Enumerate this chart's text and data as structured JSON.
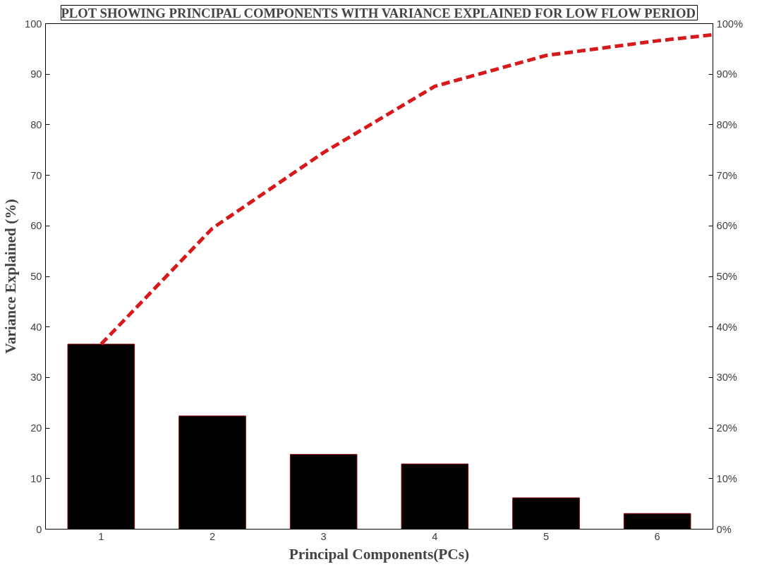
{
  "chart_data": {
    "type": "bar",
    "title": "PLOT SHOWING PRINCIPAL COMPONENTS WITH VARIANCE EXPLAINED FOR LOW FLOW PERIOD",
    "xlabel": "Principal Components(PCs)",
    "ylabel": "Variance Explained (%)",
    "x": [
      1,
      2,
      3,
      4,
      5,
      6
    ],
    "series": [
      {
        "color": "#000000",
        "values": [
          36.6,
          22.4,
          14.8,
          12.9,
          6.2,
          3.1
        ]
      },
      {
        "type": "line",
        "axis": "y2",
        "color": "#d7191c",
        "x": [
          1,
          2,
          3,
          4,
          5,
          6,
          6.5
        ],
        "values": [
          36.6,
          59.5,
          74.5,
          87.6,
          93.7,
          96.6,
          97.8
        ]
      }
    ],
    "xlim": [
      0.5,
      6.5
    ],
    "xticks": [
      1,
      2,
      3,
      4,
      5,
      6
    ],
    "ylim": [
      0,
      100
    ],
    "yticks": [
      0,
      10,
      20,
      30,
      40,
      50,
      60,
      70,
      80,
      90,
      100
    ],
    "y2lim": [
      0,
      100
    ],
    "y2ticks": [
      {
        "value": 0,
        "label": "0%"
      },
      {
        "value": 10,
        "label": "10%"
      },
      {
        "value": 20,
        "label": "20%"
      },
      {
        "value": 30,
        "label": "30%"
      },
      {
        "value": 40,
        "label": "40%"
      },
      {
        "value": 50,
        "label": "50%"
      },
      {
        "value": 60,
        "label": "60%"
      },
      {
        "value": 70,
        "label": "70%"
      },
      {
        "value": 80,
        "label": "80%"
      },
      {
        "value": 90,
        "label": "90%"
      },
      {
        "value": 100,
        "label": "100%"
      }
    ],
    "grid": false,
    "line_style": "dashed"
  }
}
